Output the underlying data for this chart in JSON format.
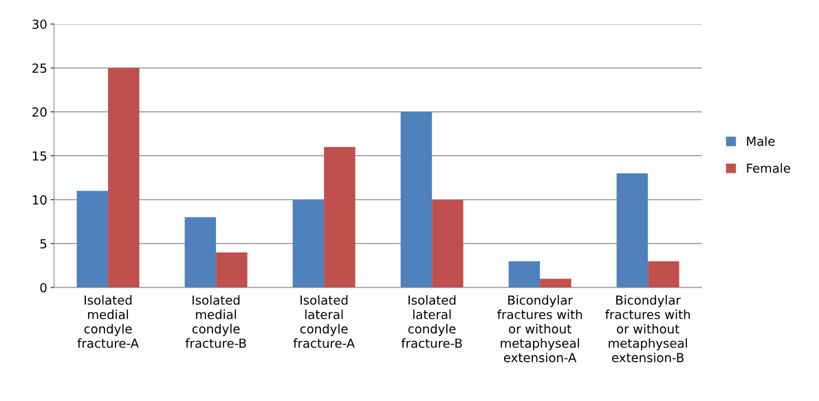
{
  "chart_data": {
    "type": "bar",
    "categories": [
      "Isolated\nmedial\ncondyle\nfracture-A",
      "Isolated\nmedial\ncondyle\nfracture-B",
      "Isolated\nlateral\ncondyle\nfracture-A",
      "Isolated\nlateral\ncondyle\nfracture-B",
      "Bicondylar\nfractures with\nor without\nmetaphyseal\nextension-A",
      "Bicondylar\nfractures with\nor without\nmetaphyseal\nextension-B"
    ],
    "series": [
      {
        "name": "Male",
        "color": "#4f81bd",
        "values": [
          11,
          8,
          10,
          20,
          3,
          13
        ]
      },
      {
        "name": "Female",
        "color": "#c0504d",
        "values": [
          25,
          4,
          16,
          10,
          1,
          3
        ]
      }
    ],
    "ylim": [
      0,
      30
    ],
    "yticks": [
      0,
      5,
      10,
      15,
      20,
      25,
      30
    ],
    "grid": "y",
    "legend": "right"
  }
}
